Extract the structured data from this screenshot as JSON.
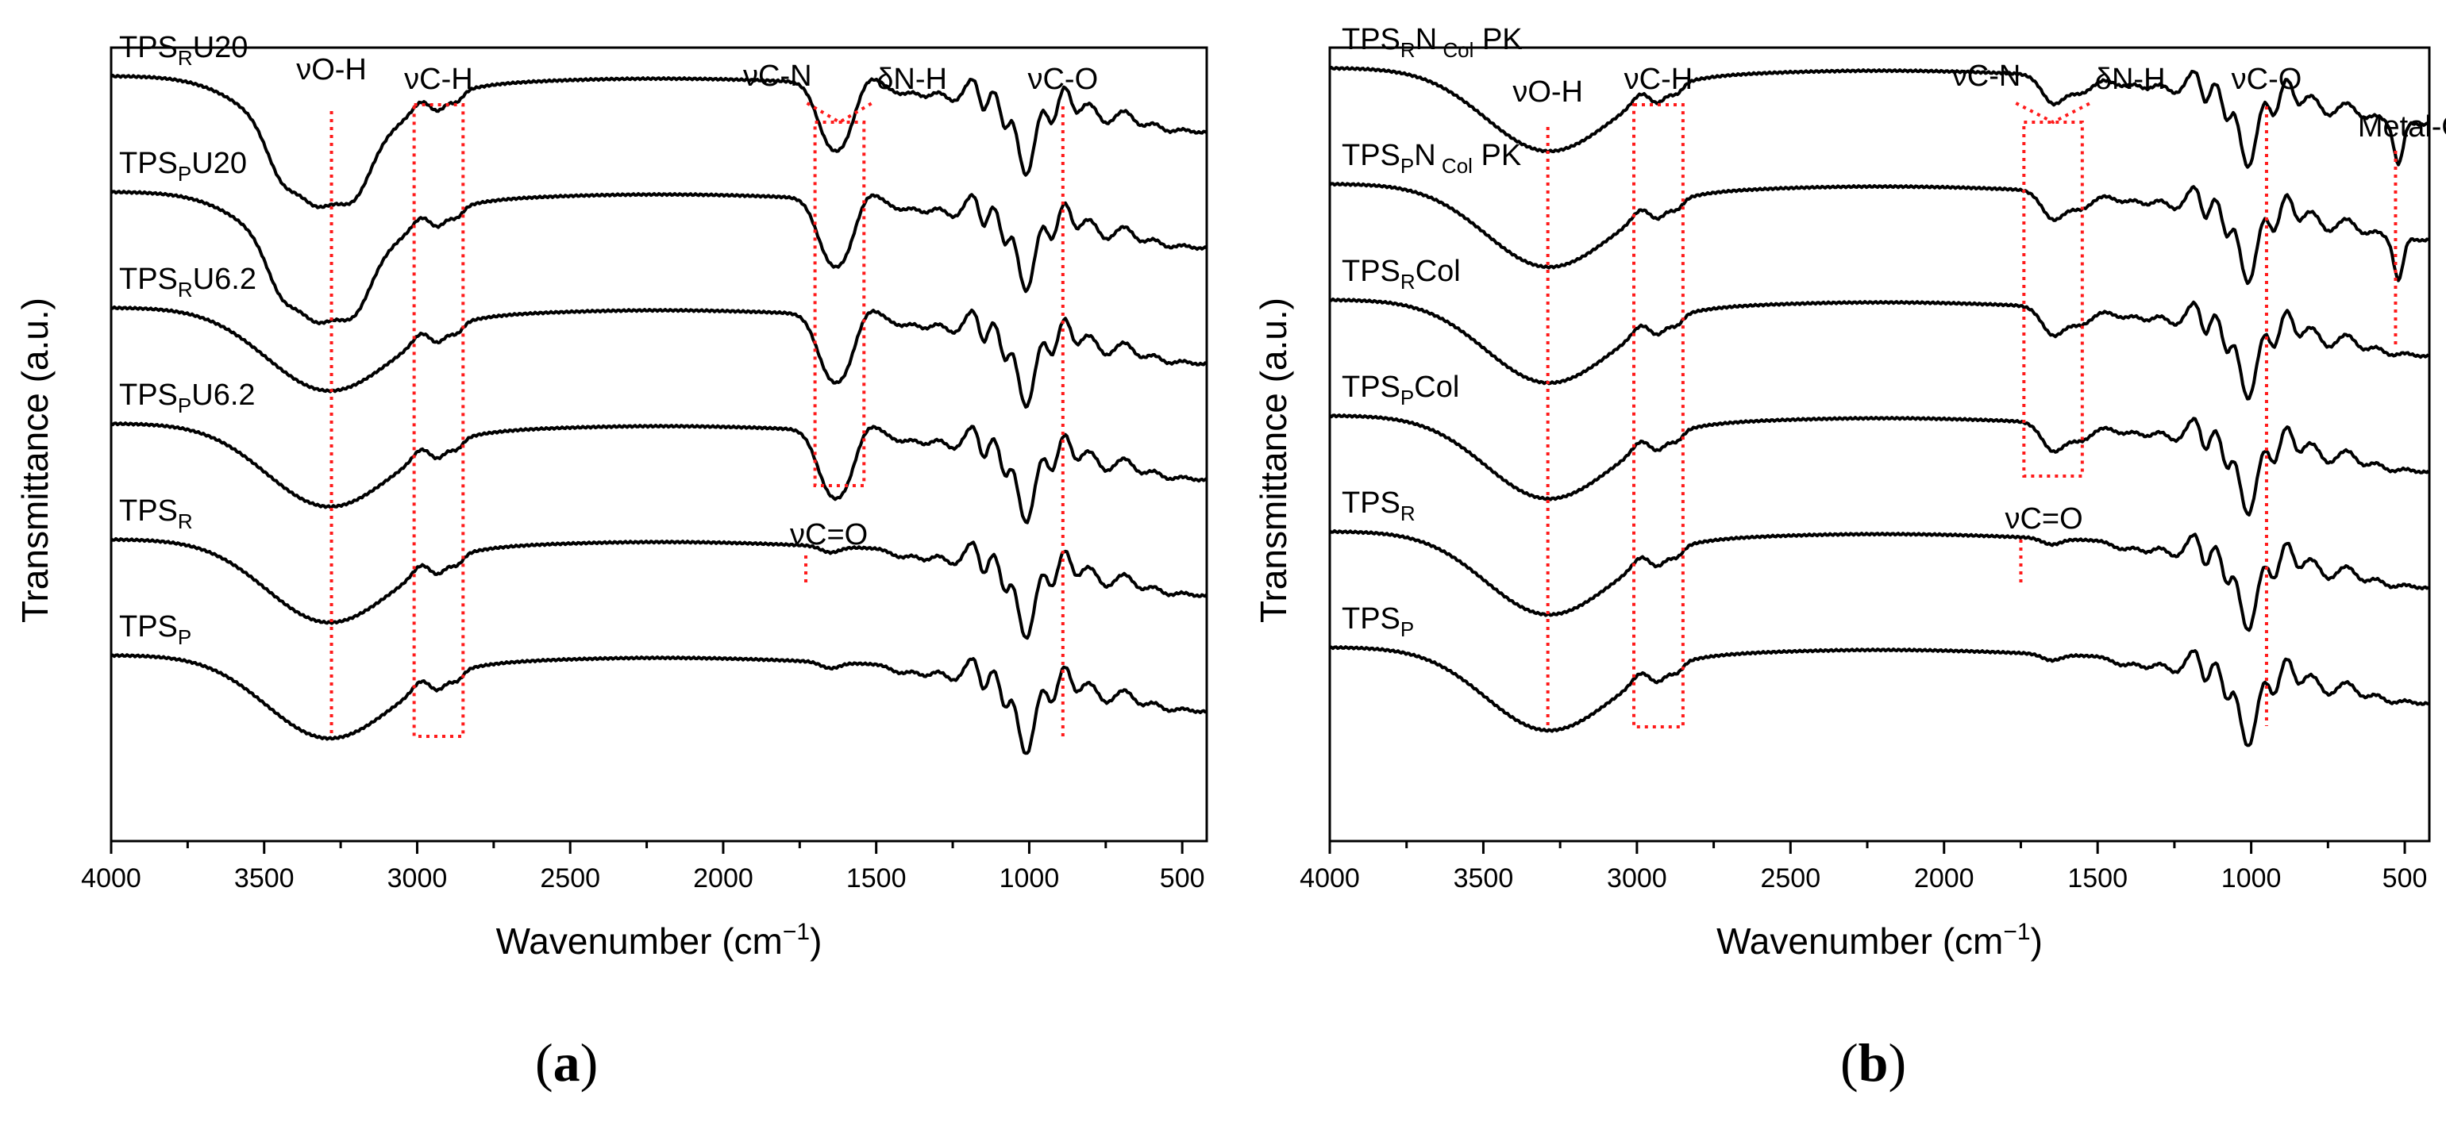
{
  "figure": {
    "panel_a_letter": "a",
    "panel_b_letter": "b"
  },
  "chart_data": [
    {
      "type": "line",
      "panel": "a",
      "xlabel": "Wavenumber (cm",
      "xlabel_sup": "−1",
      "xlabel_tail": ")",
      "ylabel": "Transmittance (a.u.)",
      "xlim": [
        4000,
        420
      ],
      "x_reversed": true,
      "xticks": [
        4000,
        3500,
        3000,
        2500,
        2000,
        1500,
        1000,
        500
      ],
      "y_offset_step": 0.72,
      "series": [
        {
          "name": "TPS_RU20",
          "label": {
            "base": "TPS",
            "sub": "R",
            "tail": "U20"
          },
          "offset": 5,
          "features": [
            "urea",
            "oh_shoulder"
          ]
        },
        {
          "name": "TPS_PU20",
          "label": {
            "base": "TPS",
            "sub": "P",
            "tail": "U20"
          },
          "offset": 4,
          "features": [
            "urea",
            "oh_shoulder"
          ]
        },
        {
          "name": "TPS_RU6.2",
          "label": {
            "base": "TPS",
            "sub": "R",
            "tail": "U6.2"
          },
          "offset": 3,
          "features": [
            "urea"
          ]
        },
        {
          "name": "TPS_PU6.2",
          "label": {
            "base": "TPS",
            "sub": "P",
            "tail": "U6.2"
          },
          "offset": 2,
          "features": [
            "urea"
          ]
        },
        {
          "name": "TPS_R",
          "label": {
            "base": "TPS",
            "sub": "R",
            "tail": ""
          },
          "offset": 1,
          "features": []
        },
        {
          "name": "TPS_P",
          "label": {
            "base": "TPS",
            "sub": "P",
            "tail": ""
          },
          "offset": 0,
          "features": []
        }
      ],
      "annotations": [
        {
          "text": "νO-H",
          "x": 3280
        },
        {
          "text": "νC-H",
          "x_range": [
            2850,
            3010
          ]
        },
        {
          "text": "νC-N",
          "x": 1700
        },
        {
          "text": "δN-H",
          "x": 1540
        },
        {
          "text": "νC-O",
          "x": 890
        },
        {
          "text": "νC=O",
          "x": 1730
        }
      ]
    },
    {
      "type": "line",
      "panel": "b",
      "xlabel": "Wavenumber (cm",
      "xlabel_sup": "−1",
      "xlabel_tail": ")",
      "ylabel": "Transmittance (a.u.)",
      "xlim": [
        4000,
        420
      ],
      "x_reversed": true,
      "xticks": [
        4000,
        3500,
        3000,
        2500,
        2000,
        1500,
        1000,
        500
      ],
      "y_offset_step": 0.72,
      "series": [
        {
          "name": "TPS_RN_ColPK",
          "label": {
            "base": "TPS",
            "sub": "R",
            "tail": "N",
            "sub2": "Col",
            "tail2": " PK"
          },
          "offset": 5,
          "features": [
            "collagen",
            "metal"
          ]
        },
        {
          "name": "TPS_PN_ColPK",
          "label": {
            "base": "TPS",
            "sub": "P",
            "tail": "N",
            "sub2": "Col",
            "tail2": " PK"
          },
          "offset": 4,
          "features": [
            "collagen",
            "metal"
          ]
        },
        {
          "name": "TPS_RCol",
          "label": {
            "base": "TPS",
            "sub": "R",
            "tail": "Col"
          },
          "offset": 3,
          "features": [
            "collagen"
          ]
        },
        {
          "name": "TPS_PCol",
          "label": {
            "base": "TPS",
            "sub": "P",
            "tail": "Col"
          },
          "offset": 2,
          "features": [
            "collagen"
          ]
        },
        {
          "name": "TPS_R",
          "label": {
            "base": "TPS",
            "sub": "R",
            "tail": ""
          },
          "offset": 1,
          "features": []
        },
        {
          "name": "TPS_P",
          "label": {
            "base": "TPS",
            "sub": "P",
            "tail": ""
          },
          "offset": 0,
          "features": []
        }
      ],
      "annotations": [
        {
          "text": "νO-H",
          "x": 3290
        },
        {
          "text": "νC-H",
          "x_range": [
            2850,
            3010
          ]
        },
        {
          "text": "νC-N",
          "x": 1740
        },
        {
          "text": "δN-H",
          "x": 1550
        },
        {
          "text": "νC-O",
          "x": 950
        },
        {
          "text": "Metal-O",
          "x": 530
        },
        {
          "text": "νC=O",
          "x": 1750
        }
      ]
    }
  ]
}
